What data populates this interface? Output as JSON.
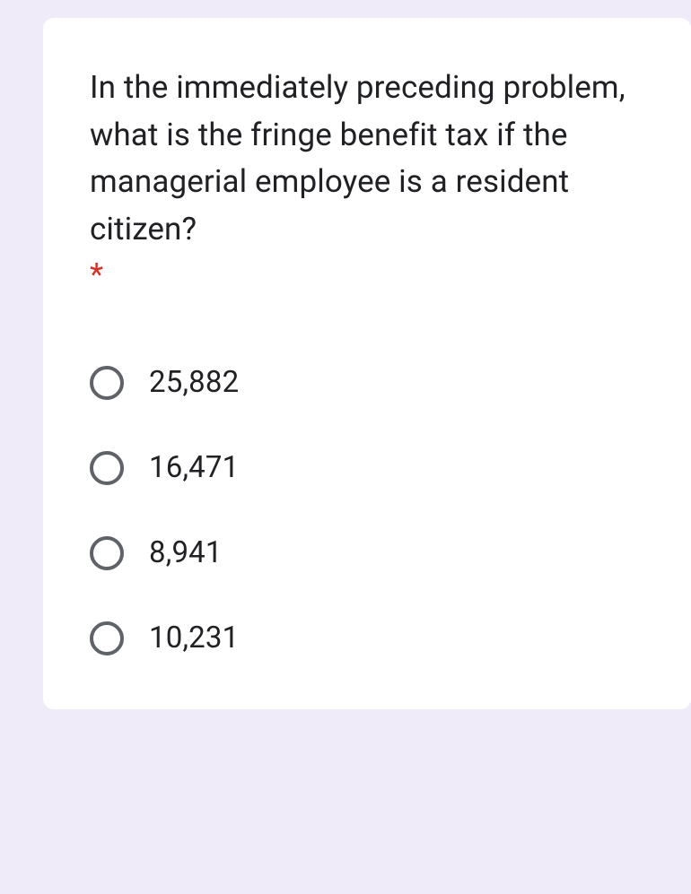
{
  "card": {
    "background_color": "#ffffff",
    "border_radius": 12
  },
  "page": {
    "background_color": "#f0ebf8"
  },
  "question": {
    "text": "In the immediately preceding problem, what is the fringe benefit tax if the managerial employee is a resident citizen?",
    "required_marker": "*",
    "required_color": "#d93025",
    "font_size": 35,
    "text_color": "#202124"
  },
  "options": [
    {
      "label": "25,882",
      "selected": false
    },
    {
      "label": "16,471",
      "selected": false
    },
    {
      "label": "8,941",
      "selected": false
    },
    {
      "label": "10,231",
      "selected": false
    }
  ],
  "radio": {
    "border_color": "#5f6368",
    "size": 38,
    "border_width": 4
  },
  "option_style": {
    "font_size": 33,
    "text_color": "#202124"
  }
}
